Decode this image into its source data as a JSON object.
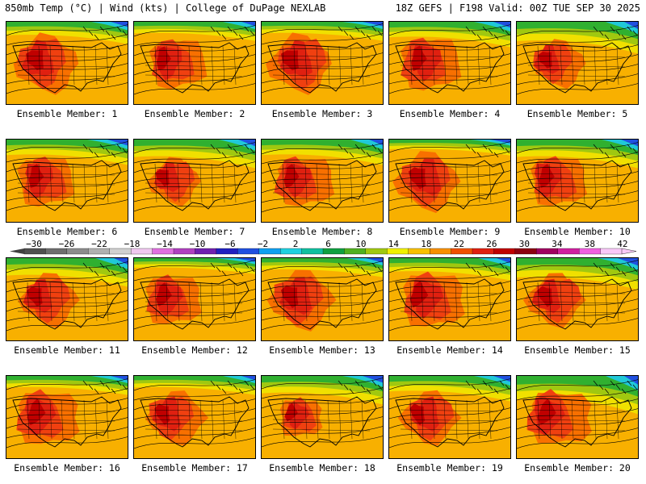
{
  "header": {
    "left": "850mb Temp (°C) | Wind (kts) | College of DuPage NEXLAB",
    "right": "18Z GEFS | F198 Valid: 00Z TUE SEP 30 2025"
  },
  "member_label_prefix": "Ensemble Member:",
  "members": [
    {
      "number": "1",
      "heat": 1.0,
      "cool": 0.7
    },
    {
      "number": "2",
      "heat": 0.9,
      "cool": 0.6
    },
    {
      "number": "3",
      "heat": 1.0,
      "cool": 0.6
    },
    {
      "number": "4",
      "heat": 0.95,
      "cool": 0.8
    },
    {
      "number": "5",
      "heat": 0.8,
      "cool": 1.0
    },
    {
      "number": "6",
      "heat": 0.9,
      "cool": 0.8
    },
    {
      "number": "7",
      "heat": 0.8,
      "cool": 0.9
    },
    {
      "number": "8",
      "heat": 0.9,
      "cool": 0.8
    },
    {
      "number": "9",
      "heat": 1.0,
      "cool": 0.5
    },
    {
      "number": "10",
      "heat": 0.9,
      "cool": 0.9
    },
    {
      "number": "11",
      "heat": 0.9,
      "cool": 0.9
    },
    {
      "number": "12",
      "heat": 0.9,
      "cool": 0.5
    },
    {
      "number": "13",
      "heat": 1.0,
      "cool": 0.6
    },
    {
      "number": "14",
      "heat": 1.0,
      "cool": 0.7
    },
    {
      "number": "15",
      "heat": 0.9,
      "cool": 1.0
    },
    {
      "number": "16",
      "heat": 1.0,
      "cool": 0.6
    },
    {
      "number": "17",
      "heat": 0.9,
      "cool": 0.6
    },
    {
      "number": "18",
      "heat": 0.7,
      "cool": 0.9
    },
    {
      "number": "19",
      "heat": 0.9,
      "cool": 0.8
    },
    {
      "number": "20",
      "heat": 1.0,
      "cool": 1.2
    }
  ],
  "colorbar": {
    "tick_labels": [
      "−30",
      "−26",
      "−22",
      "−18",
      "−14",
      "−10",
      "−6",
      "−2",
      "2",
      "6",
      "10",
      "14",
      "18",
      "22",
      "26",
      "30",
      "34",
      "38",
      "42"
    ],
    "colors": [
      "#505050",
      "#6e6e6e",
      "#8c8c8c",
      "#b0b0b0",
      "#d0d0d0",
      "#f0c8f0",
      "#e070e0",
      "#b040c0",
      "#7020b0",
      "#2020c0",
      "#2050e0",
      "#10a0f0",
      "#20d0e0",
      "#10c0a0",
      "#10a040",
      "#50b020",
      "#a0c810",
      "#f0f000",
      "#f8c000",
      "#f89000",
      "#f05000",
      "#e02010",
      "#c00000",
      "#8c0010",
      "#a00060",
      "#d020a0",
      "#f060e0",
      "#f8c8f8"
    ]
  }
}
